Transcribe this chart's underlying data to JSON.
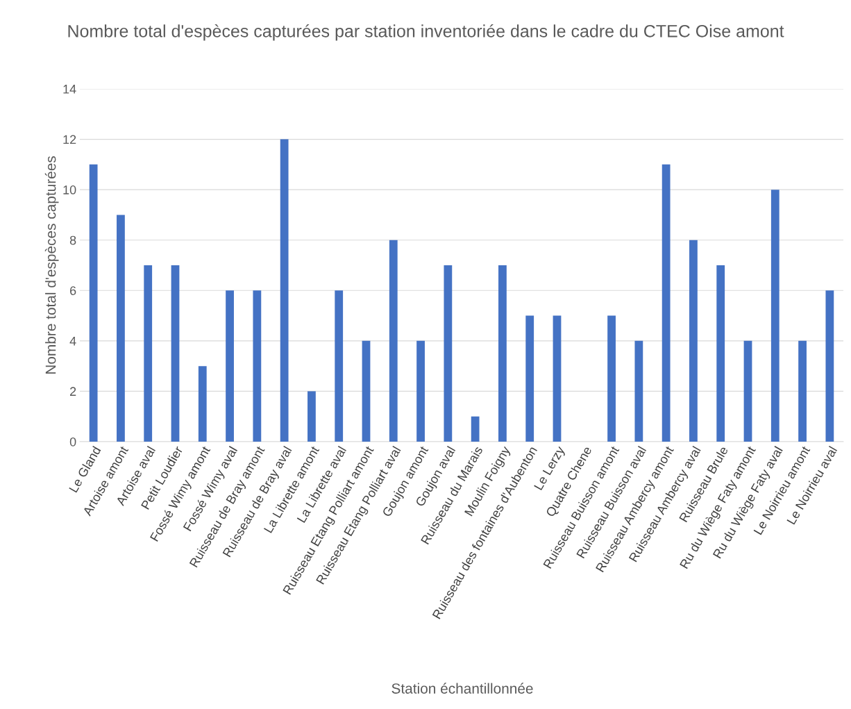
{
  "chart_data": {
    "type": "bar",
    "title": "Nombre total d'espèces capturées par station inventoriée dans le cadre du CTEC Oise amont",
    "xlabel": "Station échantillonnée",
    "ylabel": "Nombre total d'espèces capturées",
    "categories": [
      "Le Gland",
      "Artoise amont",
      "Artoise aval",
      "Petit Loudier",
      "Fossé Wimy amont",
      "Fossé Wimy aval",
      "Ruisseau de Bray amont",
      "Ruisseau de Bray aval",
      "La Librette amont",
      "La Librette aval",
      "Ruisseau Etang Polliart amont",
      "Ruisseau Etang Polliart aval",
      "Goujon amont",
      "Goujon aval",
      "Ruisseau du Marais",
      "Moulin Foigny",
      "Ruisseau des fontaines d'Aubenton",
      "Le Lerzy",
      "Quatre Chene",
      "Ruisseau Buisson amont",
      "Ruisseau Buisson aval",
      "Ruisseau Ambercy amont",
      "Ruisseau Ambercy aval",
      "Ruisseau Brule",
      "Ru du Wiège Faty amont",
      "Ru du Wiège Faty aval",
      "Le Noirrieu amont",
      "Le Noirrieu aval"
    ],
    "values": [
      11,
      9,
      7,
      7,
      3,
      6,
      6,
      12,
      2,
      6,
      4,
      8,
      4,
      7,
      1,
      7,
      5,
      5,
      0,
      5,
      4,
      11,
      8,
      7,
      4,
      10,
      4,
      6
    ],
    "color": "#4472c4",
    "ylim": [
      0,
      14
    ],
    "yticks": [
      0,
      2,
      4,
      6,
      8,
      10,
      12,
      14
    ],
    "grid": "y",
    "legend": false
  }
}
